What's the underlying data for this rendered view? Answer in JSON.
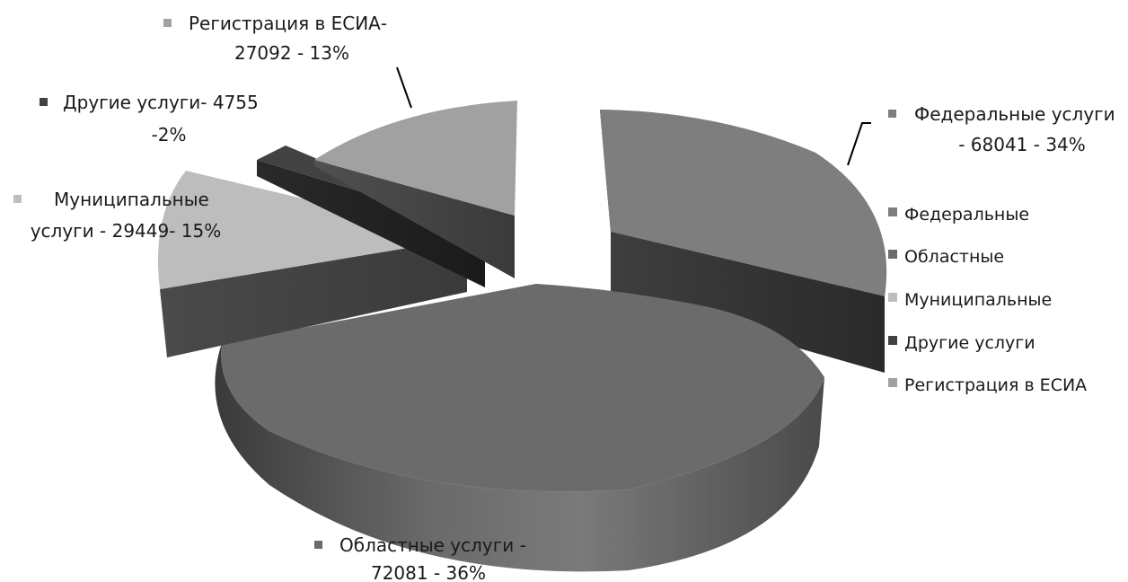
{
  "chart_data": {
    "type": "pie",
    "three_d": true,
    "exploded": true,
    "title": "",
    "categories": [
      "Федеральные",
      "Областные",
      "Муниципальные",
      "Другие услуги",
      "Регистрация в ЕСИА"
    ],
    "values": [
      68041,
      72081,
      29449,
      4755,
      27092
    ],
    "percentages": [
      34,
      36,
      15,
      2,
      13
    ],
    "data_labels": [
      [
        "Федеральные услуги",
        "- 68041 - 34%"
      ],
      [
        "Областные услуги -",
        "72081 - 36%"
      ],
      [
        "Муниципальные",
        "услуги - 29449-  15%"
      ],
      [
        "Другие услуги- 4755",
        "-2%"
      ],
      [
        "Регистрация в ЕСИА-",
        "27092 - 13%"
      ]
    ],
    "colors": [
      "#7e7e7e",
      "#6b6b6b",
      "#bdbdbd",
      "#424242",
      "#a1a1a1"
    ],
    "legend": {
      "position": "right",
      "entries": [
        "Федеральные",
        "Областные",
        "Муниципальные",
        "Другие услуги",
        "Регистрация в ЕСИА"
      ]
    }
  }
}
